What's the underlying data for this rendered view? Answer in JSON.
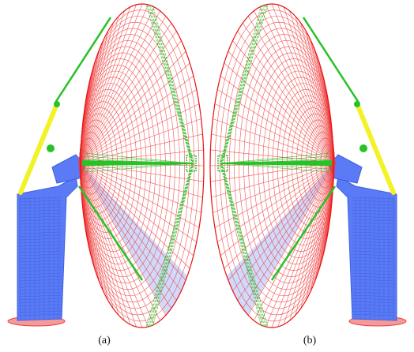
{
  "figure": {
    "panels": [
      {
        "caption": "(a)",
        "view": "left"
      },
      {
        "caption": "(b)",
        "view": "right"
      }
    ]
  },
  "colors": {
    "reflector_mesh": "#f03a3a",
    "reflector_rim": "#e81010",
    "feed_struts": "#27c227",
    "pedestal": "#5a7bf5",
    "pedestal_dark": "#3f5fe0",
    "actuator": "#f2f227",
    "base_plate": "#f39a9a",
    "shaded_panel": "#aabcf5"
  }
}
